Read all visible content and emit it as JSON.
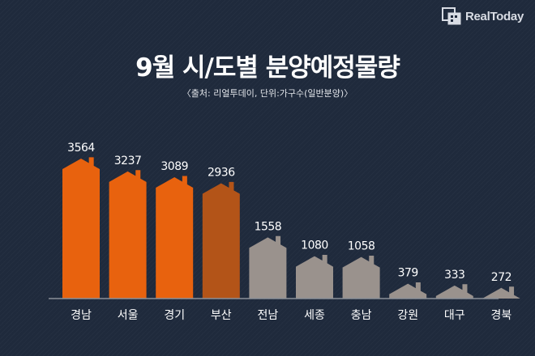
{
  "brand": {
    "name": "RealToday",
    "logo_icon": "realtoday-logo-icon"
  },
  "colors": {
    "background": "#1f2a3c",
    "highlight_bar": "#e8620e",
    "highlight_bar_dark": "#b35418",
    "muted_bar": "#9a928d",
    "text": "#ffffff",
    "baseline": "#8a8f98"
  },
  "chart_data": {
    "type": "bar",
    "title": "9월 시/도별 분양예정물량",
    "subtitle": "〈출처: 리얼투데이, 단위:가구수(일반분양)〉",
    "categories": [
      "경남",
      "서울",
      "경기",
      "부산",
      "전남",
      "세종",
      "충남",
      "강원",
      "대구",
      "경북"
    ],
    "values": [
      3564,
      3237,
      3089,
      2936,
      1558,
      1080,
      1058,
      379,
      333,
      272
    ],
    "bar_styles": [
      "highlight",
      "highlight",
      "highlight",
      "highlight_dark",
      "muted",
      "muted",
      "muted",
      "muted",
      "muted",
      "muted"
    ],
    "bar_shape": "house",
    "data_labels": true,
    "grid": false,
    "ylim": [
      0,
      3564
    ]
  }
}
